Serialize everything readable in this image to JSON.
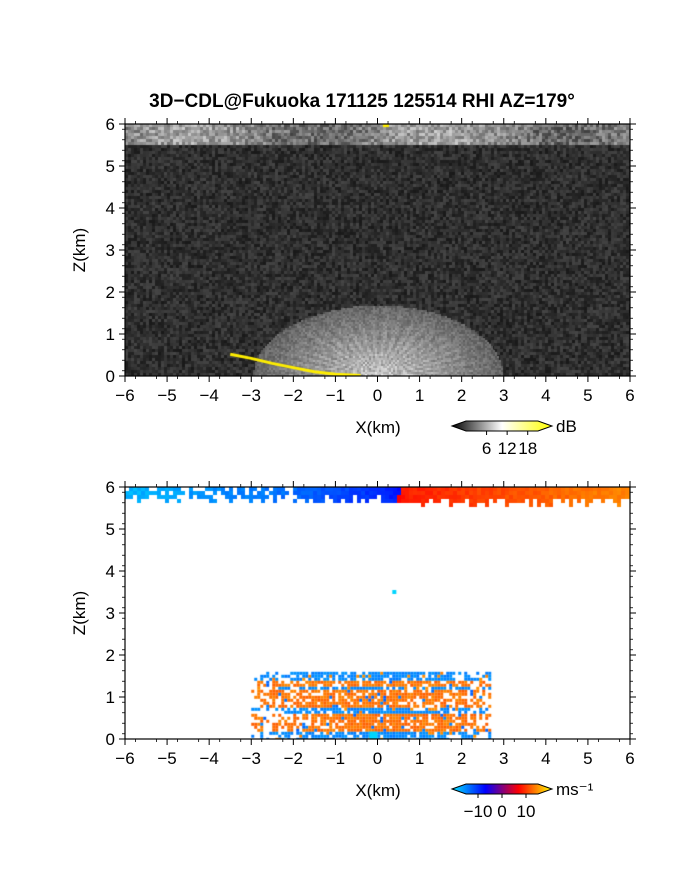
{
  "title": "3D−CDL@Fukuoka 171125 125514 RHI AZ=179°",
  "chart_data": [
    {
      "type": "heatmap",
      "name": "reflectivity",
      "xlabel": "X(km)",
      "ylabel": "Z(km)",
      "xlim": [
        -6,
        6
      ],
      "ylim": [
        0,
        6
      ],
      "xticks": [
        -6,
        -5,
        -4,
        -3,
        -2,
        -1,
        0,
        1,
        2,
        3,
        4,
        5,
        6
      ],
      "yticks": [
        0,
        1,
        2,
        3,
        4,
        5,
        6
      ],
      "colorbar": {
        "unit": "dB",
        "ticks": [
          6,
          12,
          18
        ],
        "range": [
          0,
          21
        ],
        "colors": [
          "#000000",
          "#ffffff",
          "#ffff00"
        ]
      },
      "features": {
        "noise_floor": "dark-gray speckle",
        "top_band_z": [
          5.55,
          6.0
        ],
        "fan_center_x": 0.0,
        "fan_radius_km": 1.7,
        "fan_extent_x": [
          -3.2,
          2.7
        ],
        "ground_echo": [
          [
            -3.5,
            0.52
          ],
          [
            -3.0,
            0.42
          ],
          [
            -2.5,
            0.3
          ],
          [
            -2.0,
            0.2
          ],
          [
            -1.5,
            0.1
          ],
          [
            -1.0,
            0.04
          ],
          [
            -0.4,
            0.01
          ]
        ],
        "top_spot": {
          "x": 0.2,
          "z": 5.95
        }
      }
    },
    {
      "type": "heatmap",
      "name": "doppler-velocity",
      "xlabel": "X(km)",
      "ylabel": "Z(km)",
      "xlim": [
        -6,
        6
      ],
      "ylim": [
        0,
        6
      ],
      "xticks": [
        -6,
        -5,
        -4,
        -3,
        -2,
        -1,
        0,
        1,
        2,
        3,
        4,
        5,
        6
      ],
      "yticks": [
        0,
        1,
        2,
        3,
        4,
        5,
        6
      ],
      "colorbar": {
        "unit": "ms⁻¹",
        "ticks": [
          -10,
          0,
          10
        ],
        "range": [
          -15,
          15
        ],
        "colors": [
          "#00e5ff",
          "#0000ff",
          "#ff0000",
          "#ffff00"
        ]
      },
      "features": {
        "top_band_z": [
          5.55,
          6.0
        ],
        "top_band_velocity_x": [
          [
            -6,
            -12
          ],
          [
            -2,
            -7
          ],
          [
            0.4,
            -2
          ],
          [
            0.6,
            2
          ],
          [
            3,
            5
          ],
          [
            6,
            9
          ]
        ],
        "echo_x": [
          -3.0,
          2.7
        ],
        "echo_z": [
          0.0,
          1.6
        ],
        "isolated_pixel": {
          "x": 0.4,
          "z": 3.5
        }
      }
    }
  ]
}
